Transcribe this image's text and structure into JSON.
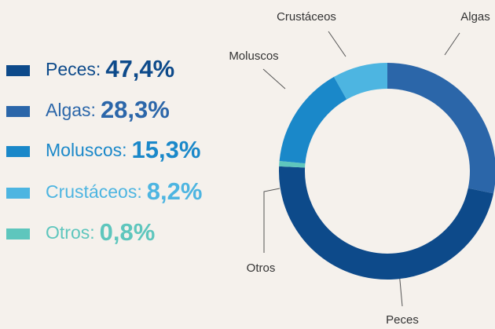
{
  "chart_data": {
    "type": "donut",
    "categories": [
      "Peces",
      "Algas",
      "Moluscos",
      "Crustáceos",
      "Otros"
    ],
    "legend_labels": [
      "Peces:",
      "Algas:",
      "Moluscos:",
      "Crustáceos:",
      "Otros:"
    ],
    "values": [
      47.4,
      28.3,
      15.3,
      8.2,
      0.8
    ],
    "value_labels": [
      "47,4%",
      "28,3%",
      "15,3%",
      "8,2%",
      "0,8%"
    ],
    "colors": [
      "#0d4a8a",
      "#2b66a9",
      "#1a88c9",
      "#4db5e1",
      "#5ec6bd"
    ]
  }
}
